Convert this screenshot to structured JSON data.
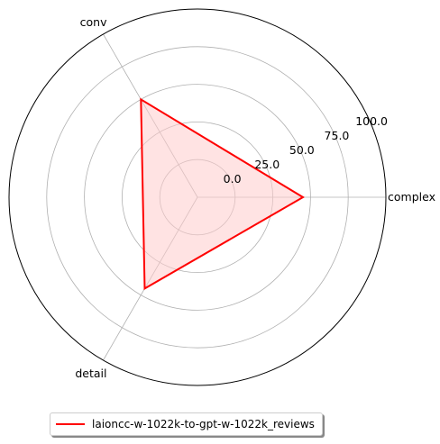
{
  "chart_data": {
    "type": "radar",
    "axes": [
      "complex",
      "conv",
      "detail"
    ],
    "radial_ticks": [
      "0.0",
      "25.0",
      "50.0",
      "75.0",
      "100.0"
    ],
    "rlim": [
      -25,
      100
    ],
    "series": [
      {
        "name": "laioncc-w-1022k-to-gpt-w-1022k_reviews",
        "values": [
          45,
          50,
          45
        ]
      }
    ],
    "grid": true,
    "legend_position": "bottom",
    "colors": {
      "line": "#ff0000",
      "fill": "#ffcccc",
      "grid": "#b0b0b0",
      "frame": "#000000"
    }
  }
}
